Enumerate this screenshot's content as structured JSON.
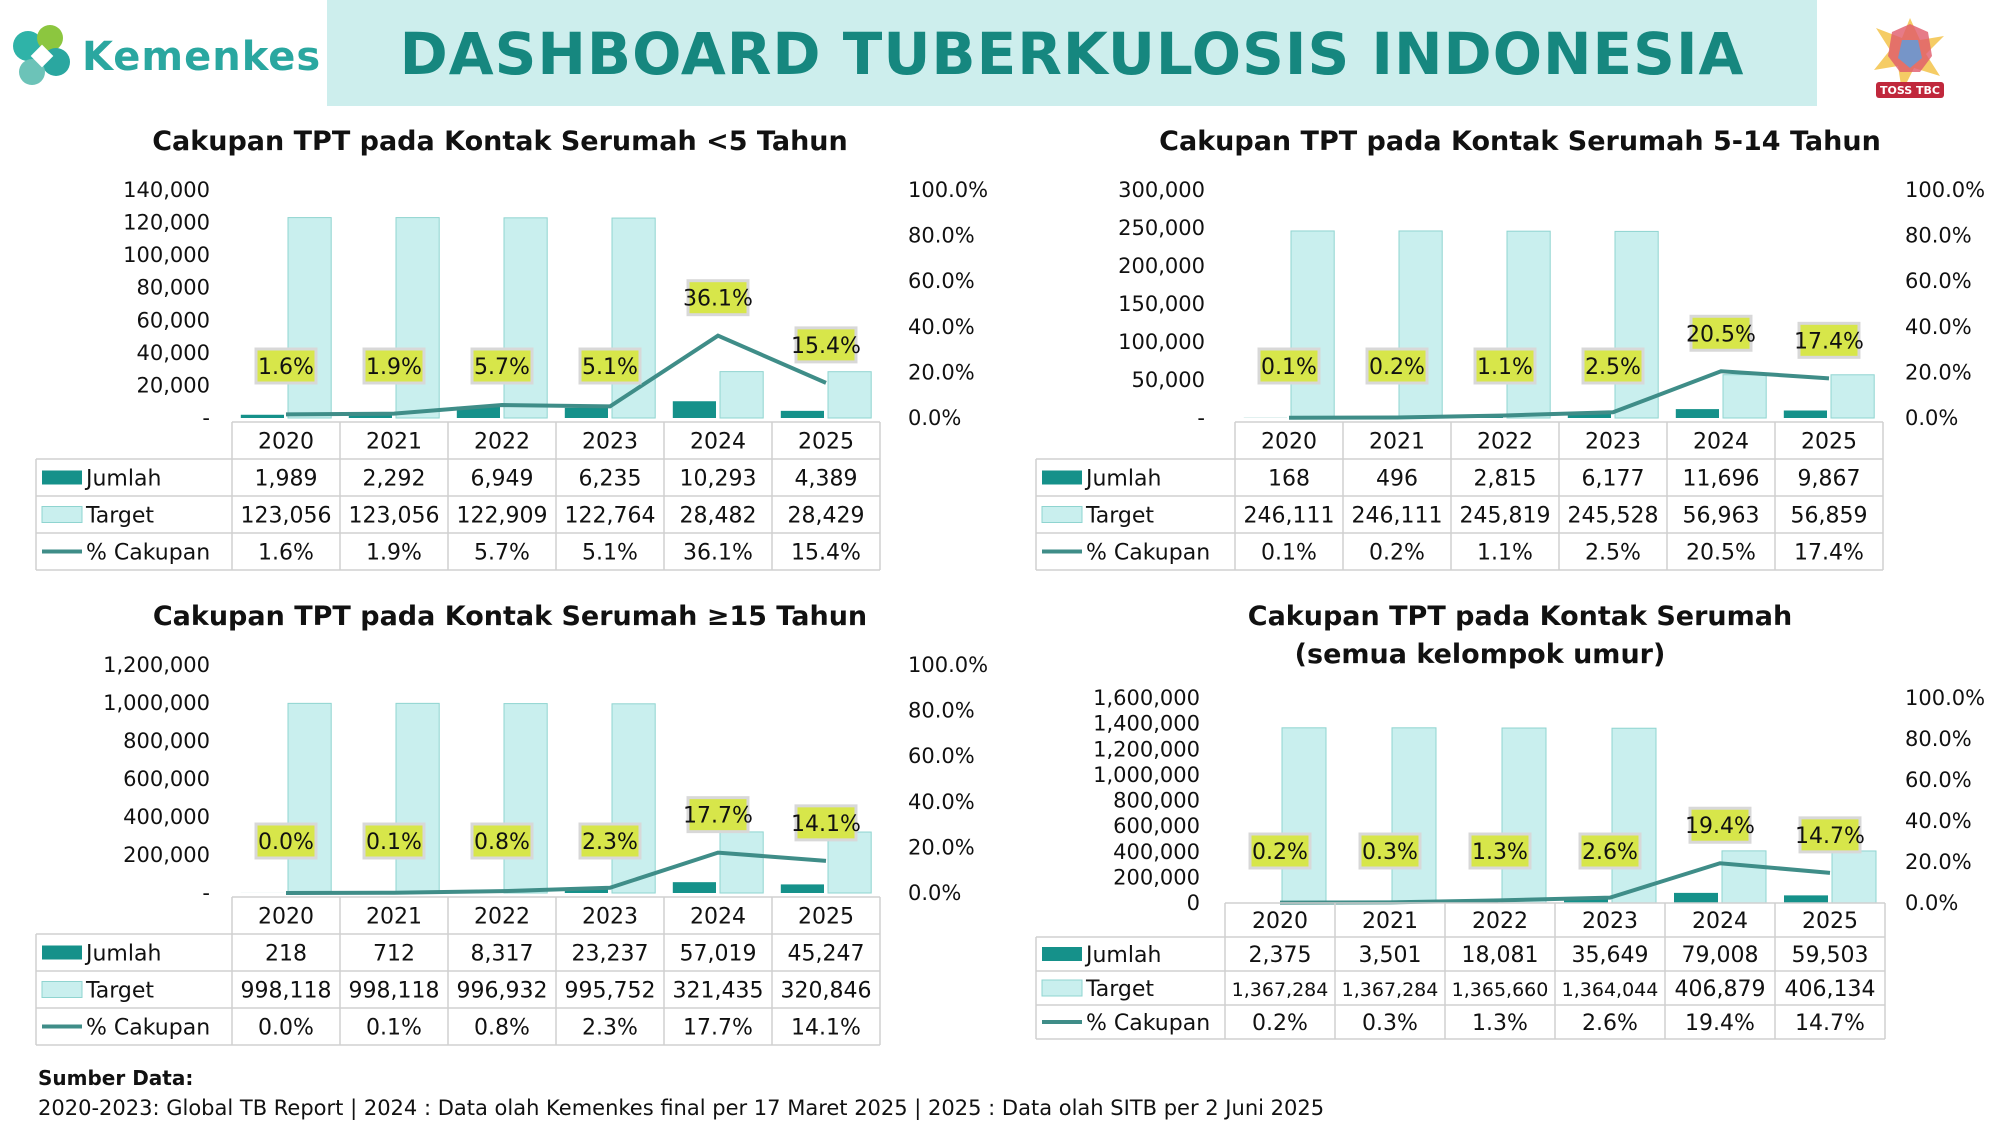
{
  "header": {
    "logo_text": "Kemenkes",
    "title": "DASHBOARD TUBERKULOSIS INDONESIA",
    "right_logo_text": "TOSS TBC"
  },
  "colors": {
    "bar_jumlah": "#15918a",
    "bar_target": "#c9efee",
    "bar_target_border": "#8fd4d0",
    "line": "#3f8d88",
    "label_bg": "#d7e64a",
    "title_band": "#cdeeed",
    "title_text": "#16877f"
  },
  "legend": {
    "jumlah": "Jumlah",
    "target": "Target",
    "cakupan": "% Cakupan"
  },
  "chart_data": [
    {
      "type": "bar",
      "title": "Cakupan TPT pada Kontak Serumah <5 Tahun",
      "categories": [
        "2020",
        "2021",
        "2022",
        "2023",
        "2024",
        "2025"
      ],
      "series": [
        {
          "name": "Jumlah",
          "values": [
            1989,
            2292,
            6949,
            6235,
            10293,
            4389
          ],
          "display": [
            "1,989",
            "2,292",
            "6,949",
            "6,235",
            "10,293",
            "4,389"
          ]
        },
        {
          "name": "Target",
          "values": [
            123056,
            123056,
            122909,
            122764,
            28482,
            28429
          ],
          "display": [
            "123,056",
            "123,056",
            "122,909",
            "122,764",
            "28,482",
            "28,429"
          ]
        },
        {
          "name": "% Cakupan",
          "type": "line",
          "values": [
            1.6,
            1.9,
            5.7,
            5.1,
            36.1,
            15.4
          ],
          "display": [
            "1.6%",
            "1.9%",
            "5.7%",
            "5.1%",
            "36.1%",
            "15.4%"
          ]
        }
      ],
      "ylim": [
        0,
        140000
      ],
      "yticks": [
        "-",
        "20,000",
        "40,000",
        "60,000",
        "80,000",
        "100,000",
        "120,000",
        "140,000"
      ],
      "y2lim": [
        0,
        100
      ],
      "y2ticks": [
        "0.0%",
        "20.0%",
        "40.0%",
        "60.0%",
        "80.0%",
        "100.0%"
      ]
    },
    {
      "type": "bar",
      "title": "Cakupan TPT pada Kontak Serumah 5-14 Tahun",
      "categories": [
        "2020",
        "2021",
        "2022",
        "2023",
        "2024",
        "2025"
      ],
      "series": [
        {
          "name": "Jumlah",
          "values": [
            168,
            496,
            2815,
            6177,
            11696,
            9867
          ],
          "display": [
            "168",
            "496",
            "2,815",
            "6,177",
            "11,696",
            "9,867"
          ]
        },
        {
          "name": "Target",
          "values": [
            246111,
            246111,
            245819,
            245528,
            56963,
            56859
          ],
          "display": [
            "246,111",
            "246,111",
            "245,819",
            "245,528",
            "56,963",
            "56,859"
          ]
        },
        {
          "name": "% Cakupan",
          "type": "line",
          "values": [
            0.1,
            0.2,
            1.1,
            2.5,
            20.5,
            17.4
          ],
          "display": [
            "0.1%",
            "0.2%",
            "1.1%",
            "2.5%",
            "20.5%",
            "17.4%"
          ]
        }
      ],
      "ylim": [
        0,
        300000
      ],
      "yticks": [
        "-",
        "50,000",
        "100,000",
        "150,000",
        "200,000",
        "250,000",
        "300,000"
      ],
      "y2lim": [
        0,
        100
      ],
      "y2ticks": [
        "0.0%",
        "20.0%",
        "40.0%",
        "60.0%",
        "80.0%",
        "100.0%"
      ]
    },
    {
      "type": "bar",
      "title": "Cakupan TPT pada Kontak Serumah ≥15 Tahun",
      "categories": [
        "2020",
        "2021",
        "2022",
        "2023",
        "2024",
        "2025"
      ],
      "series": [
        {
          "name": "Jumlah",
          "values": [
            218,
            712,
            8317,
            23237,
            57019,
            45247
          ],
          "display": [
            "218",
            "712",
            "8,317",
            "23,237",
            "57,019",
            "45,247"
          ]
        },
        {
          "name": "Target",
          "values": [
            998118,
            998118,
            996932,
            995752,
            321435,
            320846
          ],
          "display": [
            "998,118",
            "998,118",
            "996,932",
            "995,752",
            "321,435",
            "320,846"
          ]
        },
        {
          "name": "% Cakupan",
          "type": "line",
          "values": [
            0.0,
            0.1,
            0.8,
            2.3,
            17.7,
            14.1
          ],
          "display": [
            "0.0%",
            "0.1%",
            "0.8%",
            "2.3%",
            "17.7%",
            "14.1%"
          ]
        }
      ],
      "ylim": [
        0,
        1200000
      ],
      "yticks": [
        "-",
        "200,000",
        "400,000",
        "600,000",
        "800,000",
        "1,000,000",
        "1,200,000"
      ],
      "y2lim": [
        0,
        100
      ],
      "y2ticks": [
        "0.0%",
        "20.0%",
        "40.0%",
        "60.0%",
        "80.0%",
        "100.0%"
      ]
    },
    {
      "type": "bar",
      "title": "Cakupan TPT pada Kontak Serumah",
      "subtitle": "(semua kelompok umur)",
      "categories": [
        "2020",
        "2021",
        "2022",
        "2023",
        "2024",
        "2025"
      ],
      "series": [
        {
          "name": "Jumlah",
          "values": [
            2375,
            3501,
            18081,
            35649,
            79008,
            59503
          ],
          "display": [
            "2,375",
            "3,501",
            "18,081",
            "35,649",
            "79,008",
            "59,503"
          ]
        },
        {
          "name": "Target",
          "values": [
            1367284,
            1367284,
            1365660,
            1364044,
            406879,
            406134
          ],
          "display": [
            "1,367,284",
            "1,367,284",
            "1,365,660",
            "1,364,044",
            "406,879",
            "406,134"
          ]
        },
        {
          "name": "% Cakupan",
          "type": "line",
          "values": [
            0.2,
            0.3,
            1.3,
            2.6,
            19.4,
            14.7
          ],
          "display": [
            "0.2%",
            "0.3%",
            "1.3%",
            "2.6%",
            "19.4%",
            "14.7%"
          ]
        }
      ],
      "ylim": [
        0,
        1600000
      ],
      "yticks": [
        "0",
        "200,000",
        "400,000",
        "600,000",
        "800,000",
        "1,000,000",
        "1,200,000",
        "1,400,000",
        "1,600,000"
      ],
      "y2lim": [
        0,
        100
      ],
      "y2ticks": [
        "0.0%",
        "20.0%",
        "40.0%",
        "60.0%",
        "80.0%",
        "100.0%"
      ]
    }
  ],
  "footer": {
    "source_label": "Sumber Data:",
    "source_text": "2020-2023: Global TB Report | 2024 : Data olah Kemenkes final per 17 Maret 2025 | 2025 : Data olah SITB per 2 Juni 2025"
  }
}
